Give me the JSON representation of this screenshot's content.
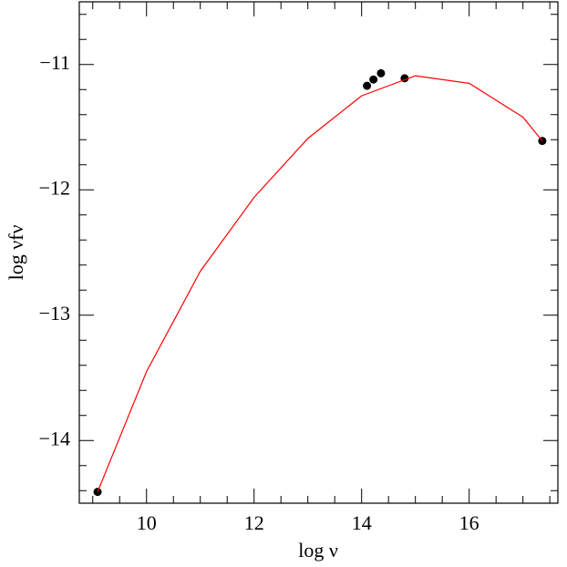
{
  "chart_data": {
    "type": "scatter",
    "x_label": "log ν",
    "y_label": "log νfν",
    "xlim": [
      8.75,
      17.65
    ],
    "ylim": [
      -14.5,
      -10.5
    ],
    "xticks": [
      10,
      12,
      14,
      16
    ],
    "yticks": [
      {
        "value": -14,
        "label": "−14"
      },
      {
        "value": -13,
        "label": "−13"
      },
      {
        "value": -12,
        "label": "−12"
      },
      {
        "value": -11,
        "label": "−11"
      }
    ],
    "series": [
      {
        "kind": "points",
        "color": "#000000",
        "x": [
          9.09,
          14.1,
          14.22,
          14.36,
          14.8,
          17.36
        ],
        "values": [
          -14.41,
          -11.17,
          -11.12,
          -11.07,
          -11.11,
          -11.61
        ]
      },
      {
        "kind": "curve",
        "color": "#ff0000",
        "x": [
          9.09,
          10,
          11,
          12,
          13,
          14,
          15,
          16,
          17,
          17.36
        ],
        "values": [
          -14.41,
          -13.45,
          -12.65,
          -12.06,
          -11.59,
          -11.25,
          -11.09,
          -11.15,
          -11.42,
          -11.61
        ]
      }
    ]
  }
}
